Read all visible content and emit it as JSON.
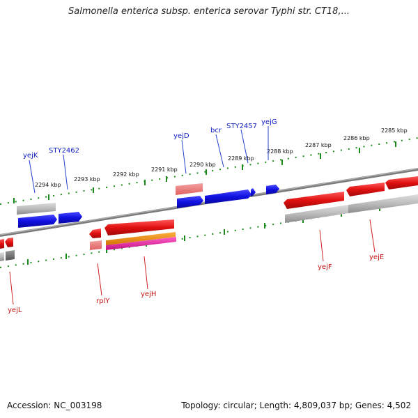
{
  "title": "Salmonella enterica subsp. enterica serovar Typhi str. CT18,...",
  "accession_line": "Accession: NC_003198",
  "stats_line": "Topology: circular; Length: 4,809,037 bp; Genes: 4,502",
  "colors": {
    "forward_gene": "#1010e0",
    "reverse_gene": "#e01010",
    "orange_gene": "#f08c10",
    "magenta_gene": "#e020a0",
    "grey_gene": "#aaaaaa",
    "tick": "#1a8a1a",
    "label_forward": "#1020c0",
    "label_reverse": "#c01010"
  },
  "ruler": {
    "unit": "kbp",
    "labels": [
      "2294 kbp",
      "2293 kbp",
      "2292 kbp",
      "2291 kbp",
      "2290 kbp",
      "2289 kbp",
      "2288 kbp",
      "2287 kbp",
      "2286 kbp",
      "2285 kbp"
    ]
  },
  "genes_forward": [
    "yejK",
    "STY2462",
    "yejD",
    "bcr",
    "STY2457",
    "yejG"
  ],
  "genes_reverse": [
    "yejL",
    "rplY",
    "yejH",
    "yejF",
    "yejE"
  ]
}
